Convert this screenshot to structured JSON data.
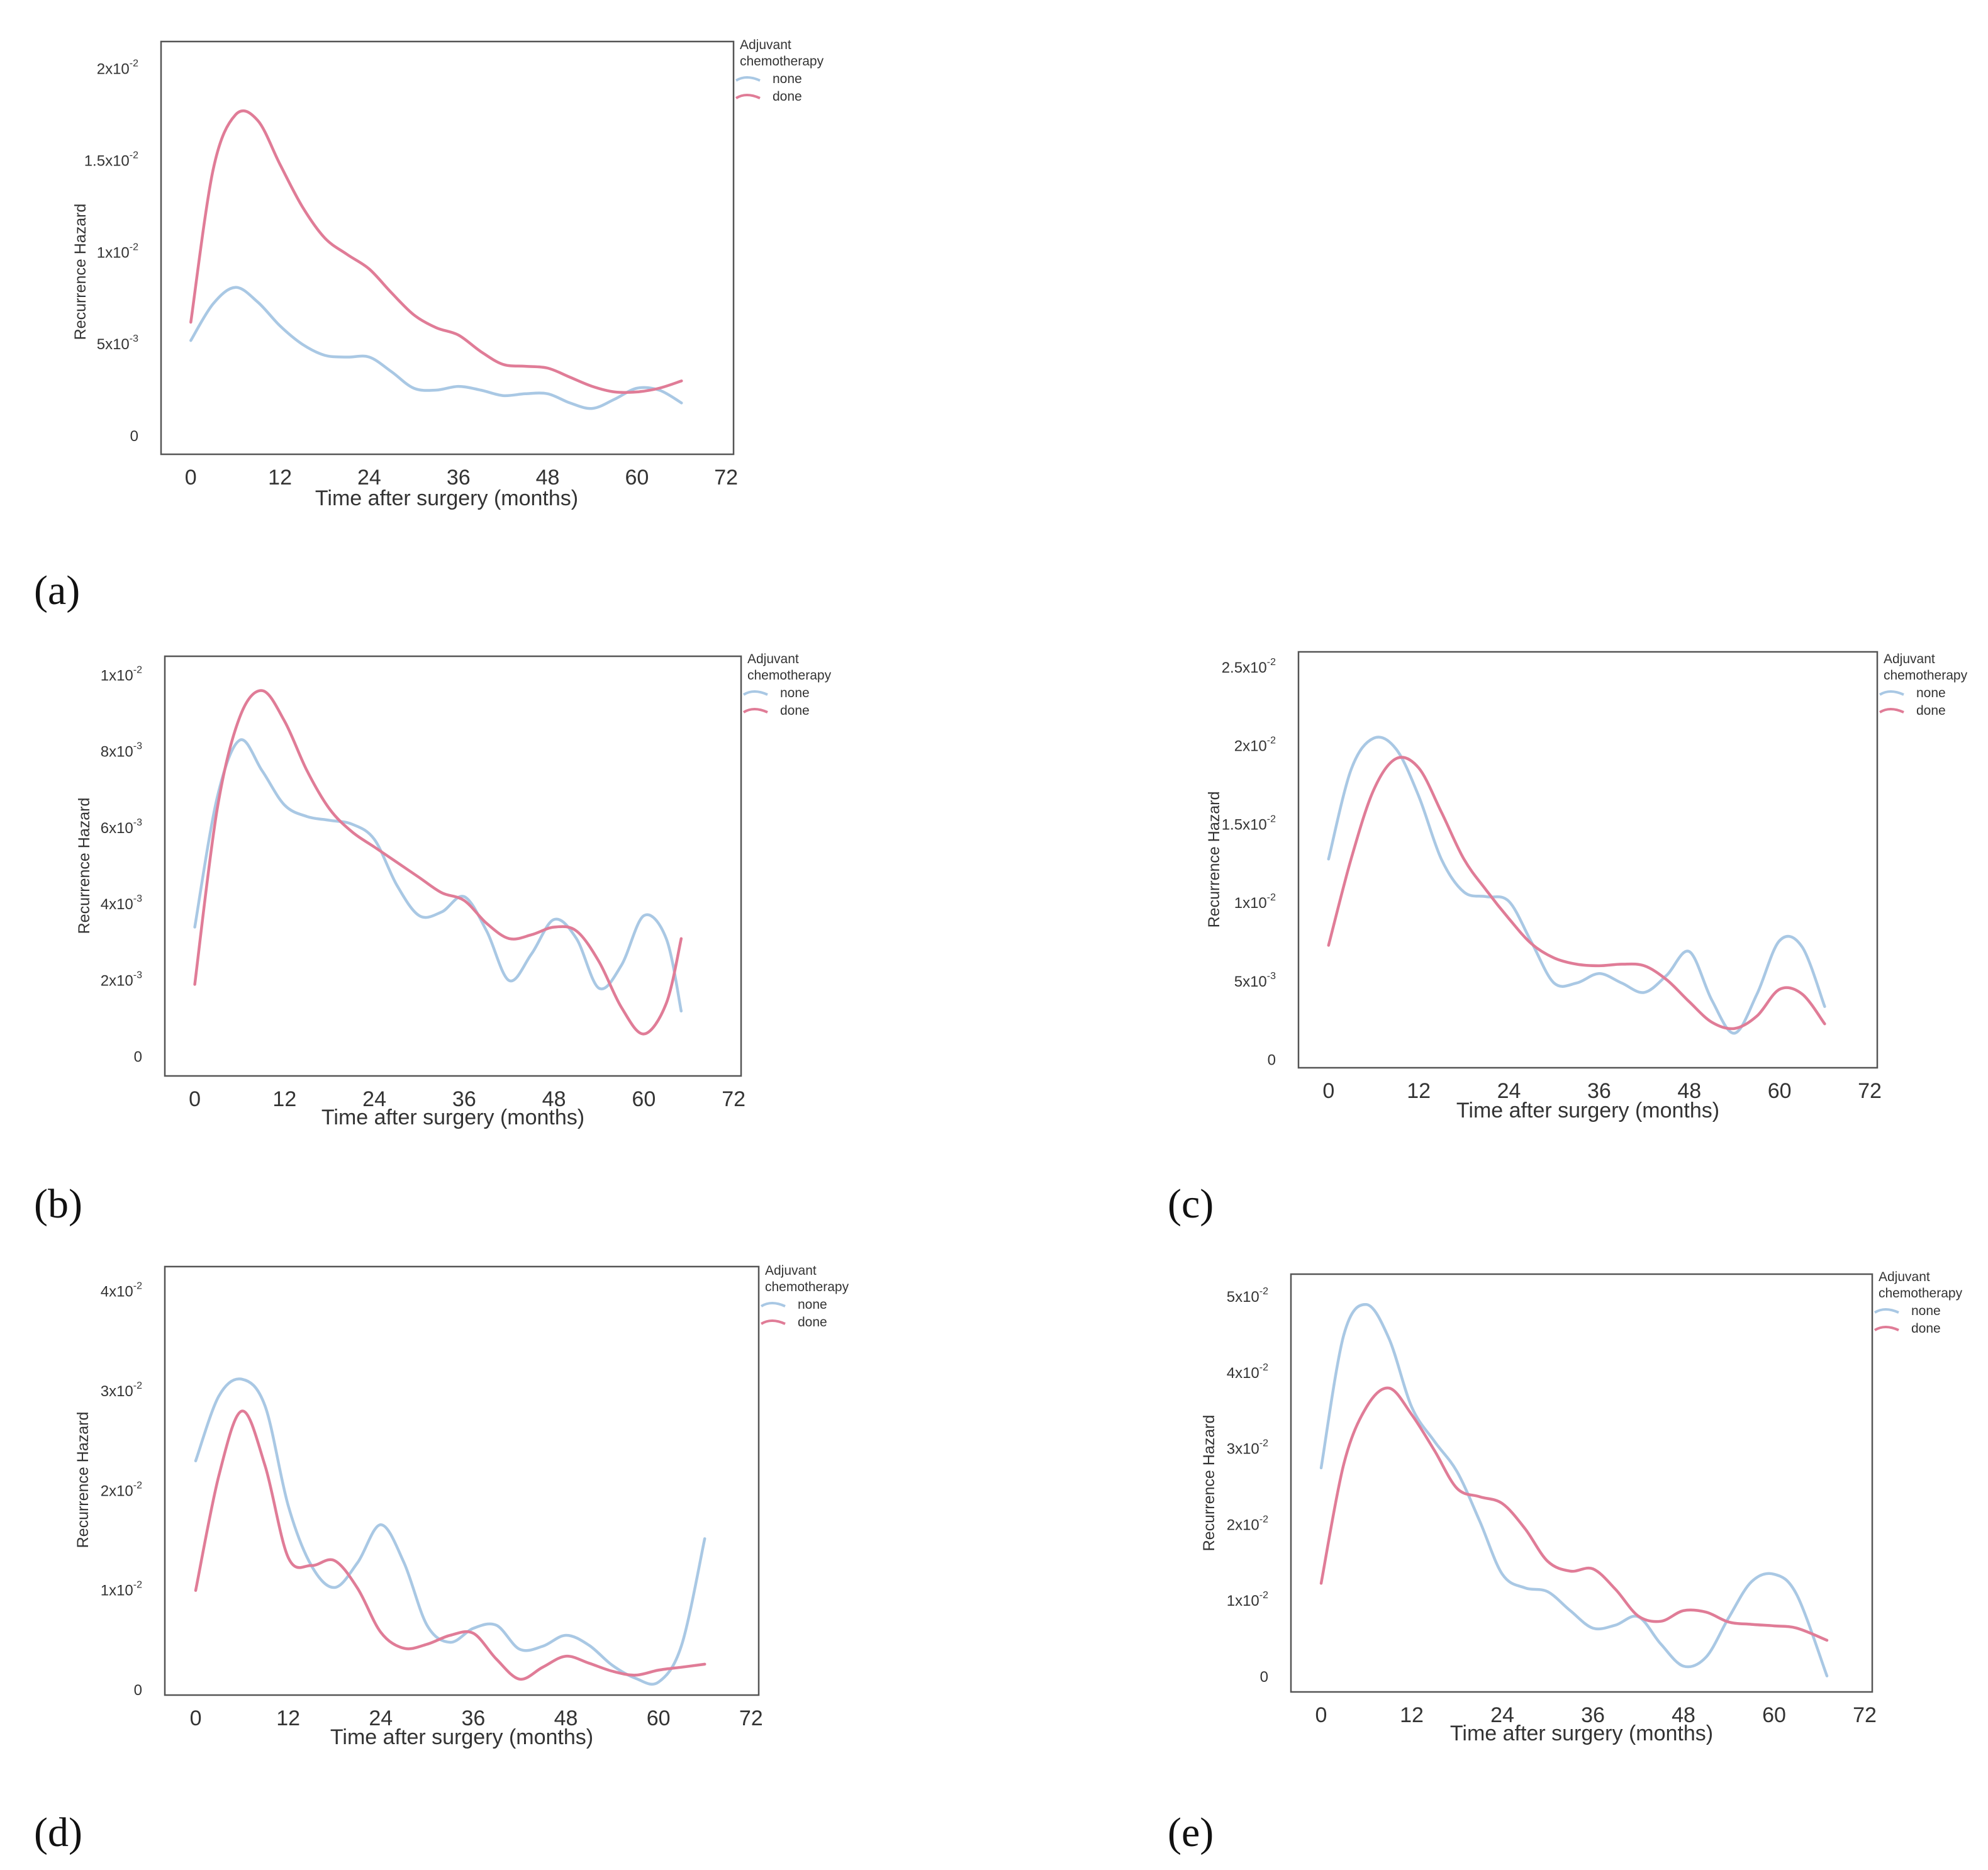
{
  "colors": {
    "none": "#a9c8e4",
    "done": "#e07c97",
    "axis": "#555555",
    "text": "#333333"
  },
  "chart_data": [
    {
      "panel": "(a)",
      "type": "line",
      "xlabel": "Time after surgery (months)",
      "ylabel": "Recurrence Hazard",
      "xticks": [
        "0",
        "12",
        "24",
        "36",
        "48",
        "60",
        "72"
      ],
      "xlim": [
        -4,
        73
      ],
      "ylim": [
        -0.001,
        0.0215
      ],
      "yticks": [
        {
          "v": 0,
          "base": "0",
          "exp": ""
        },
        {
          "v": 0.005,
          "base": "5x10",
          "exp": "-3"
        },
        {
          "v": 0.01,
          "base": "1x10",
          "exp": "-2"
        },
        {
          "v": 0.015,
          "base": "1.5x10",
          "exp": "-2"
        },
        {
          "v": 0.02,
          "base": "2x10",
          "exp": "-2"
        }
      ],
      "legend_title": [
        "Adjuvant",
        "chemotherapy"
      ],
      "grid": false,
      "legend_position": "top-right outside",
      "series": [
        {
          "name": "none",
          "x": [
            0,
            3,
            6,
            9,
            12,
            15,
            18,
            21,
            24,
            27,
            30,
            33,
            36,
            39,
            42,
            45,
            48,
            51,
            54,
            57,
            60,
            63,
            66
          ],
          "y": [
            0.0052,
            0.0072,
            0.0081,
            0.0073,
            0.006,
            0.005,
            0.0044,
            0.0043,
            0.0043,
            0.0035,
            0.0026,
            0.0025,
            0.0027,
            0.0025,
            0.0022,
            0.0023,
            0.0023,
            0.0018,
            0.0015,
            0.002,
            0.0026,
            0.0025,
            0.0018
          ]
        },
        {
          "name": "done",
          "x": [
            0,
            3,
            6,
            9,
            12,
            15,
            18,
            21,
            24,
            27,
            30,
            33,
            36,
            39,
            42,
            45,
            48,
            51,
            54,
            57,
            60,
            63,
            66
          ],
          "y": [
            0.0062,
            0.0145,
            0.0175,
            0.0172,
            0.0148,
            0.0125,
            0.0108,
            0.0099,
            0.0091,
            0.0078,
            0.0066,
            0.0059,
            0.0055,
            0.0046,
            0.0039,
            0.0038,
            0.0037,
            0.0032,
            0.0027,
            0.0024,
            0.0024,
            0.0026,
            0.003
          ]
        }
      ]
    },
    {
      "panel": "(b)",
      "type": "line",
      "xlabel": "Time after surgery (months)",
      "ylabel": "Recurrence Hazard",
      "xticks": [
        "0",
        "12",
        "24",
        "36",
        "48",
        "60",
        "72"
      ],
      "xlim": [
        -4,
        73
      ],
      "ylim": [
        -0.0005,
        0.0105
      ],
      "yticks": [
        {
          "v": 0,
          "base": "0",
          "exp": ""
        },
        {
          "v": 0.002,
          "base": "2x10",
          "exp": "-3"
        },
        {
          "v": 0.004,
          "base": "4x10",
          "exp": "-3"
        },
        {
          "v": 0.006,
          "base": "6x10",
          "exp": "-3"
        },
        {
          "v": 0.008,
          "base": "8x10",
          "exp": "-3"
        },
        {
          "v": 0.01,
          "base": "1x10",
          "exp": "-2"
        }
      ],
      "legend_title": [
        "Adjuvant",
        "chemotherapy"
      ],
      "grid": false,
      "legend_position": "top-right outside",
      "series": [
        {
          "name": "none",
          "x": [
            0,
            3,
            6,
            9,
            12,
            15,
            18,
            21,
            24,
            27,
            30,
            33,
            36,
            39,
            42,
            45,
            48,
            51,
            54,
            57,
            60,
            63,
            65
          ],
          "y": [
            0.0034,
            0.0068,
            0.0083,
            0.0075,
            0.0066,
            0.0063,
            0.0062,
            0.0061,
            0.0057,
            0.0045,
            0.0037,
            0.0038,
            0.0042,
            0.0033,
            0.002,
            0.0027,
            0.0036,
            0.0031,
            0.0018,
            0.0024,
            0.0037,
            0.0031,
            0.0012
          ]
        },
        {
          "name": "done",
          "x": [
            0,
            3,
            6,
            9,
            12,
            15,
            18,
            21,
            24,
            27,
            30,
            33,
            36,
            39,
            42,
            45,
            48,
            51,
            54,
            57,
            60,
            63,
            65
          ],
          "y": [
            0.0019,
            0.0065,
            0.0089,
            0.0096,
            0.0088,
            0.0075,
            0.0065,
            0.0059,
            0.0055,
            0.0051,
            0.0047,
            0.0043,
            0.0041,
            0.0035,
            0.0031,
            0.0032,
            0.0034,
            0.0033,
            0.0025,
            0.0013,
            0.0006,
            0.0014,
            0.0031
          ]
        }
      ]
    },
    {
      "panel": "(c)",
      "type": "line",
      "xlabel": "Time after surgery (months)",
      "ylabel": "Recurrence Hazard",
      "xticks": [
        "0",
        "12",
        "24",
        "36",
        "48",
        "60",
        "72"
      ],
      "xlim": [
        -4,
        73
      ],
      "ylim": [
        -0.0005,
        0.026
      ],
      "yticks": [
        {
          "v": 0,
          "base": "0",
          "exp": ""
        },
        {
          "v": 0.005,
          "base": "5x10",
          "exp": "-3"
        },
        {
          "v": 0.01,
          "base": "1x10",
          "exp": "-2"
        },
        {
          "v": 0.015,
          "base": "1.5x10",
          "exp": "-2"
        },
        {
          "v": 0.02,
          "base": "2x10",
          "exp": "-2"
        },
        {
          "v": 0.025,
          "base": "2.5x10",
          "exp": "-2"
        }
      ],
      "legend_title": [
        "Adjuvant",
        "chemotherapy"
      ],
      "grid": false,
      "legend_position": "top-right outside",
      "series": [
        {
          "name": "none",
          "x": [
            0,
            3,
            6,
            9,
            12,
            15,
            18,
            21,
            24,
            27,
            30,
            33,
            36,
            39,
            42,
            45,
            48,
            51,
            54,
            57,
            60,
            63,
            66
          ],
          "y": [
            0.0128,
            0.0185,
            0.0205,
            0.0198,
            0.0168,
            0.0128,
            0.0107,
            0.0104,
            0.0101,
            0.0075,
            0.0049,
            0.0049,
            0.0055,
            0.0049,
            0.0043,
            0.0054,
            0.0069,
            0.0038,
            0.0017,
            0.0042,
            0.0076,
            0.0072,
            0.0034
          ]
        },
        {
          "name": "done",
          "x": [
            0,
            3,
            6,
            9,
            12,
            15,
            18,
            21,
            24,
            27,
            30,
            33,
            36,
            39,
            42,
            45,
            48,
            51,
            54,
            57,
            60,
            63,
            66
          ],
          "y": [
            0.0073,
            0.0128,
            0.0172,
            0.0192,
            0.0186,
            0.0158,
            0.0128,
            0.0108,
            0.009,
            0.0074,
            0.0065,
            0.0061,
            0.006,
            0.0061,
            0.006,
            0.0051,
            0.0037,
            0.0024,
            0.002,
            0.0028,
            0.0045,
            0.0042,
            0.0023
          ]
        }
      ]
    },
    {
      "panel": "(d)",
      "type": "line",
      "xlabel": "Time after surgery (months)",
      "ylabel": "Recurrence Hazard",
      "xticks": [
        "0",
        "12",
        "24",
        "36",
        "48",
        "60",
        "72"
      ],
      "xlim": [
        -4,
        73
      ],
      "ylim": [
        -0.0005,
        0.0425
      ],
      "yticks": [
        {
          "v": 0,
          "base": "0",
          "exp": ""
        },
        {
          "v": 0.01,
          "base": "1x10",
          "exp": "-2"
        },
        {
          "v": 0.02,
          "base": "2x10",
          "exp": "-2"
        },
        {
          "v": 0.03,
          "base": "3x10",
          "exp": "-2"
        },
        {
          "v": 0.04,
          "base": "4x10",
          "exp": "-2"
        }
      ],
      "legend_title": [
        "Adjuvant",
        "chemotherapy"
      ],
      "grid": false,
      "legend_position": "top-right outside",
      "series": [
        {
          "name": "none",
          "x": [
            0,
            3,
            6,
            9,
            12,
            15,
            18,
            21,
            24,
            27,
            30,
            33,
            36,
            39,
            42,
            45,
            48,
            51,
            54,
            57,
            60,
            63,
            66
          ],
          "y": [
            0.023,
            0.0295,
            0.0312,
            0.0285,
            0.0185,
            0.0125,
            0.0103,
            0.0128,
            0.0166,
            0.0128,
            0.0065,
            0.0048,
            0.0062,
            0.0065,
            0.0041,
            0.0044,
            0.0055,
            0.0045,
            0.0025,
            0.0012,
            0.0008,
            0.0045,
            0.0152
          ]
        },
        {
          "name": "done",
          "x": [
            0,
            3,
            6,
            9,
            12,
            15,
            18,
            21,
            24,
            27,
            30,
            33,
            36,
            39,
            42,
            45,
            48,
            51,
            54,
            57,
            60,
            63,
            66
          ],
          "y": [
            0.01,
            0.0215,
            0.028,
            0.0225,
            0.0133,
            0.0125,
            0.013,
            0.0102,
            0.0058,
            0.0042,
            0.0046,
            0.0055,
            0.0057,
            0.0031,
            0.0011,
            0.0023,
            0.0034,
            0.0027,
            0.0019,
            0.0015,
            0.002,
            0.0023,
            0.0026
          ]
        }
      ]
    },
    {
      "panel": "(e)",
      "type": "line",
      "xlabel": "Time after surgery (months)",
      "ylabel": "Recurrence Hazard",
      "xticks": [
        "0",
        "12",
        "24",
        "36",
        "48",
        "60",
        "72"
      ],
      "xlim": [
        -4,
        73
      ],
      "ylim": [
        -0.002,
        0.053
      ],
      "yticks": [
        {
          "v": 0,
          "base": "0",
          "exp": ""
        },
        {
          "v": 0.01,
          "base": "1x10",
          "exp": "-2"
        },
        {
          "v": 0.02,
          "base": "2x10",
          "exp": "-2"
        },
        {
          "v": 0.03,
          "base": "3x10",
          "exp": "-2"
        },
        {
          "v": 0.04,
          "base": "4x10",
          "exp": "-2"
        },
        {
          "v": 0.05,
          "base": "5x10",
          "exp": "-2"
        }
      ],
      "legend_title": [
        "Adjuvant",
        "chemotherapy"
      ],
      "grid": false,
      "legend_position": "top-right outside",
      "series": [
        {
          "name": "none",
          "x": [
            0,
            3,
            6,
            9,
            12,
            15,
            18,
            21,
            24,
            27,
            30,
            33,
            36,
            39,
            42,
            45,
            48,
            51,
            54,
            57,
            60,
            63,
            67
          ],
          "y": [
            0.0275,
            0.045,
            0.049,
            0.0445,
            0.0355,
            0.031,
            0.027,
            0.0205,
            0.0135,
            0.0117,
            0.0112,
            0.0087,
            0.0064,
            0.0068,
            0.0079,
            0.0043,
            0.0014,
            0.0026,
            0.0078,
            0.0125,
            0.0135,
            0.0108,
            0.0001
          ]
        },
        {
          "name": "done",
          "x": [
            0,
            3,
            6,
            9,
            12,
            15,
            18,
            21,
            24,
            27,
            30,
            33,
            36,
            39,
            42,
            45,
            48,
            51,
            54,
            57,
            60,
            63,
            67
          ],
          "y": [
            0.0123,
            0.028,
            0.0355,
            0.038,
            0.0345,
            0.0298,
            0.0248,
            0.0237,
            0.0228,
            0.0195,
            0.0152,
            0.0139,
            0.0142,
            0.0115,
            0.008,
            0.0073,
            0.0087,
            0.0085,
            0.0072,
            0.0069,
            0.0067,
            0.0064,
            0.0048
          ]
        }
      ]
    }
  ]
}
